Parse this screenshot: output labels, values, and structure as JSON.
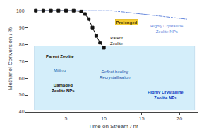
{
  "chart_data": {
    "type": "line",
    "xlabel": "Time on Stream / hr",
    "ylabel": "Methanol Conversion / %",
    "series": [
      {
        "x": [
          1,
          2,
          3,
          4,
          5,
          6,
          7,
          8,
          9,
          10,
          11,
          12,
          13,
          14,
          15,
          16,
          17,
          18,
          19,
          20,
          21
        ],
        "values": [
          100,
          100,
          100,
          100,
          100,
          100,
          100,
          100,
          100,
          100,
          100,
          99.5,
          99,
          98.5,
          98,
          97.5,
          97,
          96.5,
          96,
          95.5,
          95
        ],
        "color": "#6688dd",
        "marker": "square-open",
        "line_style": "solid"
      },
      {
        "x": [
          1,
          2,
          3,
          4,
          5,
          6,
          7,
          7.5,
          8,
          8.5,
          9,
          9.5,
          10
        ],
        "values": [
          100,
          100,
          100,
          100,
          100,
          100,
          99.5,
          98,
          95,
          90,
          85,
          81,
          78
        ],
        "color": "#111111",
        "marker": "square",
        "line_style": "solid"
      }
    ],
    "xlim": [
      0,
      22.5
    ],
    "xticks": [
      5,
      10,
      15,
      20
    ],
    "ylim": [
      40,
      103
    ],
    "yticks": [
      40,
      50,
      60,
      70,
      80,
      90,
      100
    ],
    "grid": false,
    "annotations": [
      "Prolonged",
      "Parent\nZeolite",
      "Highly Crystalline\nZeolite NPs",
      "Parent Zeolite",
      "Milling",
      "Damaged\nZeolite NPs",
      "Defect-healing\nRecrystallisation",
      "Highly Crystalline\nZeolite NPs"
    ]
  }
}
